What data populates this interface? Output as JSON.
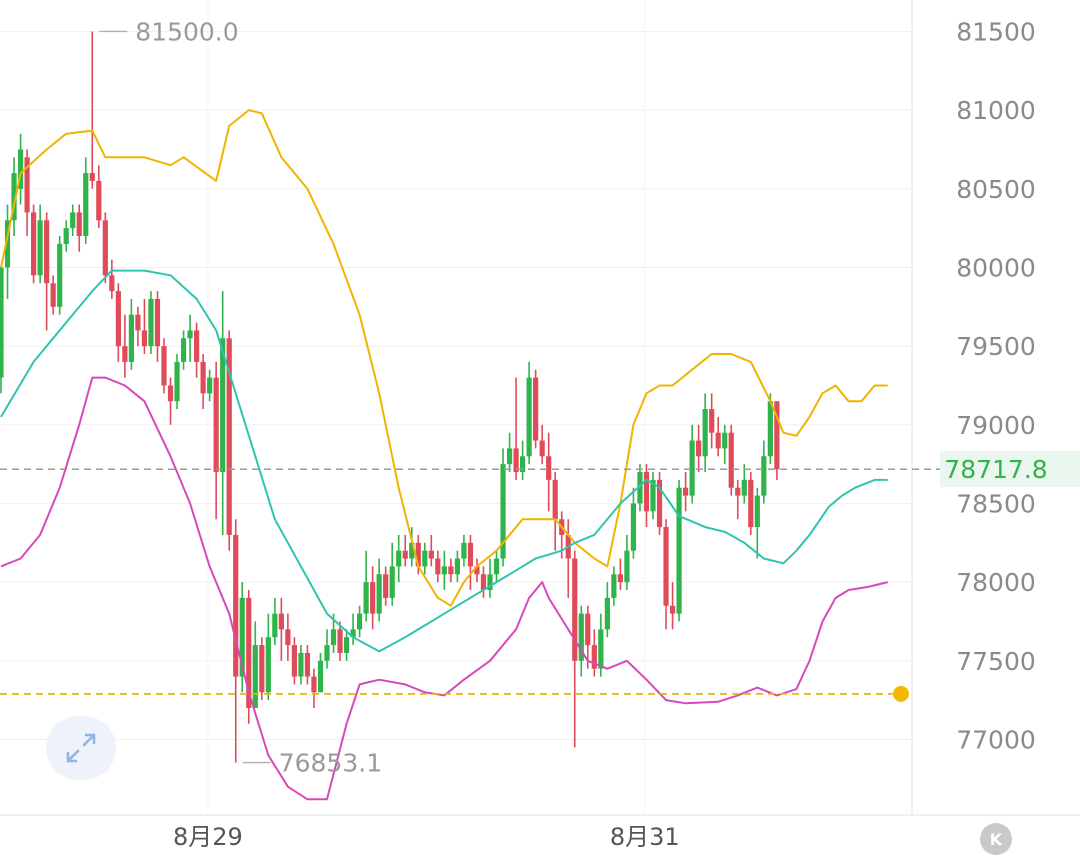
{
  "chart_data": {
    "type": "candlestick",
    "y_ticks": [
      81500,
      81000,
      80500,
      80000,
      79500,
      79000,
      78500,
      78000,
      77500,
      77000
    ],
    "y_tick_labels": [
      "81500",
      "81000",
      "80500",
      "80000",
      "79500",
      "79000",
      "78500",
      "78000",
      "77500",
      "77000"
    ],
    "ylim": [
      76520,
      81700
    ],
    "x_labels": [
      {
        "label": "8月29",
        "index": 21
      },
      {
        "label": "8月31",
        "index": 88
      }
    ],
    "last_price": 78717.8,
    "last_price_label": "78717.8",
    "alert_price": 77290,
    "max_label": "81500.0",
    "min_label": "76853.1",
    "grid": true,
    "colors": {
      "up": "#2fb34b",
      "down": "#e04b5a",
      "bb_upper": "#f0b400",
      "bb_middle": "#2ec4b0",
      "bb_lower": "#d948b8",
      "alert_line": "#f0b400",
      "last_price_line": "#9a9a9a"
    },
    "candles": [
      [
        79300,
        80000,
        80000,
        79200
      ],
      [
        80000,
        80300,
        80400,
        79800
      ],
      [
        80300,
        80600,
        80700,
        80200
      ],
      [
        80500,
        80750,
        80850,
        80400
      ],
      [
        80700,
        80350,
        80750,
        80200
      ],
      [
        80350,
        79950,
        80400,
        79900
      ],
      [
        79950,
        80300,
        80400,
        79900
      ],
      [
        80300,
        79900,
        80350,
        79600
      ],
      [
        79900,
        79750,
        79950,
        79700
      ],
      [
        79750,
        80150,
        80200,
        79700
      ],
      [
        80150,
        80250,
        80300,
        80100
      ],
      [
        80250,
        80350,
        80400,
        80200
      ],
      [
        80350,
        80200,
        80400,
        80100
      ],
      [
        80200,
        80600,
        80700,
        80150
      ],
      [
        80600,
        80550,
        81500,
        80500
      ],
      [
        80550,
        80300,
        80650,
        80250
      ],
      [
        80300,
        79950,
        80350,
        79900
      ],
      [
        79950,
        79850,
        80050,
        79800
      ],
      [
        79850,
        79500,
        79900,
        79400
      ],
      [
        79500,
        79400,
        79700,
        79300
      ],
      [
        79400,
        79700,
        79800,
        79350
      ],
      [
        79700,
        79600,
        79750,
        79500
      ],
      [
        79600,
        79500,
        79800,
        79450
      ],
      [
        79500,
        79800,
        79850,
        79450
      ],
      [
        79800,
        79500,
        79850,
        79400
      ],
      [
        79500,
        79250,
        79550,
        79200
      ],
      [
        79250,
        79150,
        79300,
        79000
      ],
      [
        79150,
        79400,
        79450,
        79100
      ],
      [
        79400,
        79550,
        79600,
        79350
      ],
      [
        79550,
        79600,
        79700,
        79400
      ],
      [
        79600,
        79400,
        79650,
        79300
      ],
      [
        79400,
        79200,
        79450,
        79100
      ],
      [
        79200,
        79300,
        79350,
        79150
      ],
      [
        79300,
        78700,
        79400,
        78400
      ],
      [
        78700,
        79550,
        79850,
        78300
      ],
      [
        79550,
        78300,
        79600,
        78200
      ],
      [
        78300,
        77400,
        78400,
        76853.1
      ],
      [
        77400,
        77900,
        78000,
        77300
      ],
      [
        77900,
        77200,
        77950,
        77100
      ],
      [
        77200,
        77600,
        77750,
        77250
      ],
      [
        77600,
        77300,
        77650,
        77250
      ],
      [
        77300,
        77650,
        77800,
        77250
      ],
      [
        77650,
        77800,
        77900,
        77600
      ],
      [
        77800,
        77700,
        77900,
        77500
      ],
      [
        77700,
        77600,
        77800,
        77500
      ],
      [
        77600,
        77400,
        77650,
        77350
      ],
      [
        77400,
        77550,
        77600,
        77350
      ],
      [
        77550,
        77400,
        77600,
        77350
      ],
      [
        77400,
        77300,
        77450,
        77200
      ],
      [
        77300,
        77500,
        77550,
        77300
      ],
      [
        77500,
        77600,
        77700,
        77450
      ],
      [
        77600,
        77700,
        77800,
        77550
      ],
      [
        77700,
        77550,
        77750,
        77500
      ],
      [
        77550,
        77650,
        77700,
        77500
      ],
      [
        77650,
        77700,
        77800,
        77600
      ],
      [
        77700,
        77800,
        77850,
        77650
      ],
      [
        77800,
        78000,
        78200,
        77750
      ],
      [
        78000,
        77800,
        78100,
        77700
      ],
      [
        77800,
        78050,
        78150,
        77750
      ],
      [
        78050,
        77900,
        78100,
        77850
      ],
      [
        77900,
        78100,
        78250,
        77850
      ],
      [
        78100,
        78200,
        78300,
        78000
      ],
      [
        78200,
        78150,
        78300,
        78100
      ],
      [
        78150,
        78250,
        78350,
        78100
      ],
      [
        78250,
        78100,
        78300,
        78050
      ],
      [
        78100,
        78200,
        78250,
        78050
      ],
      [
        78200,
        78150,
        78300,
        78100
      ],
      [
        78150,
        78050,
        78200,
        78000
      ],
      [
        78050,
        78100,
        78200,
        77950
      ],
      [
        78100,
        78050,
        78150,
        78000
      ],
      [
        78050,
        78150,
        78200,
        78000
      ],
      [
        78150,
        78250,
        78300,
        78100
      ],
      [
        78250,
        78100,
        78300,
        77950
      ],
      [
        78100,
        78050,
        78150,
        78000
      ],
      [
        78050,
        77950,
        78100,
        77900
      ],
      [
        77950,
        78050,
        78150,
        77900
      ],
      [
        78050,
        78150,
        78200,
        78000
      ],
      [
        78150,
        78750,
        78850,
        78100
      ],
      [
        78750,
        78850,
        78950,
        78700
      ],
      [
        78850,
        78700,
        79300,
        78650
      ],
      [
        78700,
        78800,
        78900,
        78650
      ],
      [
        78800,
        79300,
        79400,
        78750
      ],
      [
        79300,
        78900,
        79350,
        78850
      ],
      [
        78900,
        78800,
        79000,
        78750
      ],
      [
        78800,
        78650,
        78950,
        78450
      ],
      [
        78650,
        78400,
        78700,
        78200
      ],
      [
        78400,
        78300,
        78450,
        78150
      ],
      [
        78300,
        78150,
        78400,
        77900
      ],
      [
        78150,
        77500,
        78200,
        76950
      ],
      [
        77500,
        77800,
        77850,
        77400
      ],
      [
        77800,
        77600,
        77850,
        77450
      ],
      [
        77600,
        77450,
        77700,
        77400
      ],
      [
        77450,
        77700,
        77800,
        77400
      ],
      [
        77700,
        77900,
        78000,
        77650
      ],
      [
        77900,
        78050,
        78100,
        77850
      ],
      [
        78050,
        78000,
        78150,
        77950
      ],
      [
        78000,
        78200,
        78300,
        77950
      ],
      [
        78200,
        78500,
        78600,
        78150
      ],
      [
        78500,
        78700,
        78750,
        78450
      ],
      [
        78700,
        78450,
        78750,
        78350
      ],
      [
        78450,
        78650,
        78700,
        78400
      ],
      [
        78650,
        78350,
        78700,
        78300
      ],
      [
        78350,
        77850,
        78400,
        77700
      ],
      [
        77850,
        77800,
        78000,
        77700
      ],
      [
        77800,
        78600,
        78650,
        77750
      ],
      [
        78600,
        78550,
        78700,
        78450
      ],
      [
        78550,
        78900,
        79000,
        78500
      ],
      [
        78900,
        78800,
        79000,
        78700
      ],
      [
        78800,
        79100,
        79200,
        78700
      ],
      [
        79100,
        78950,
        79200,
        78850
      ],
      [
        78950,
        78850,
        79050,
        78800
      ],
      [
        78850,
        78950,
        79000,
        78750
      ],
      [
        78950,
        78600,
        79000,
        78550
      ],
      [
        78600,
        78550,
        78650,
        78400
      ],
      [
        78550,
        78650,
        78750,
        78500
      ],
      [
        78650,
        78350,
        78700,
        78300
      ],
      [
        78350,
        78550,
        78600,
        78150
      ],
      [
        78550,
        78800,
        78900,
        78500
      ],
      [
        78800,
        79150,
        79200,
        78750
      ],
      [
        79150,
        78717.8,
        79150,
        78650
      ]
    ],
    "bb_upper": [
      [
        0,
        80000
      ],
      [
        3,
        80600
      ],
      [
        7,
        80750
      ],
      [
        10,
        80850
      ],
      [
        14,
        80870
      ],
      [
        16,
        80700
      ],
      [
        22,
        80700
      ],
      [
        26,
        80650
      ],
      [
        28,
        80700
      ],
      [
        33,
        80550
      ],
      [
        35,
        80900
      ],
      [
        38,
        81000
      ],
      [
        40,
        80980
      ],
      [
        43,
        80700
      ],
      [
        47,
        80500
      ],
      [
        51,
        80150
      ],
      [
        55,
        79700
      ],
      [
        58,
        79200
      ],
      [
        61,
        78600
      ],
      [
        64,
        78100
      ],
      [
        67,
        77900
      ],
      [
        69,
        77850
      ],
      [
        71,
        78000
      ],
      [
        73,
        78100
      ],
      [
        76,
        78200
      ],
      [
        78,
        78300
      ],
      [
        80,
        78400
      ],
      [
        85,
        78400
      ],
      [
        88,
        78250
      ],
      [
        91,
        78150
      ],
      [
        93,
        78100
      ],
      [
        95,
        78500
      ],
      [
        97,
        79000
      ],
      [
        99,
        79200
      ],
      [
        101,
        79250
      ],
      [
        103,
        79250
      ],
      [
        106,
        79350
      ],
      [
        109,
        79450
      ],
      [
        112,
        79450
      ],
      [
        115,
        79400
      ],
      [
        118,
        79150
      ],
      [
        120,
        78950
      ],
      [
        122,
        78930
      ],
      [
        124,
        79050
      ],
      [
        126,
        79200
      ],
      [
        128,
        79250
      ],
      [
        130,
        79150
      ],
      [
        132,
        79150
      ],
      [
        134,
        79250
      ],
      [
        136,
        79250
      ]
    ],
    "bb_middle": [
      [
        0,
        79050
      ],
      [
        5,
        79400
      ],
      [
        10,
        79650
      ],
      [
        14,
        79850
      ],
      [
        17,
        79980
      ],
      [
        22,
        79980
      ],
      [
        26,
        79950
      ],
      [
        30,
        79800
      ],
      [
        33,
        79600
      ],
      [
        36,
        79200
      ],
      [
        39,
        78800
      ],
      [
        42,
        78400
      ],
      [
        46,
        78100
      ],
      [
        50,
        77800
      ],
      [
        54,
        77650
      ],
      [
        58,
        77560
      ],
      [
        62,
        77650
      ],
      [
        66,
        77750
      ],
      [
        70,
        77850
      ],
      [
        74,
        77950
      ],
      [
        78,
        78050
      ],
      [
        82,
        78150
      ],
      [
        86,
        78200
      ],
      [
        88,
        78250
      ],
      [
        91,
        78300
      ],
      [
        95,
        78500
      ],
      [
        99,
        78650
      ],
      [
        101,
        78600
      ],
      [
        104,
        78420
      ],
      [
        108,
        78350
      ],
      [
        111,
        78320
      ],
      [
        114,
        78250
      ],
      [
        117,
        78150
      ],
      [
        120,
        78120
      ],
      [
        122,
        78200
      ],
      [
        124,
        78300
      ],
      [
        127,
        78480
      ],
      [
        129,
        78550
      ],
      [
        131,
        78600
      ],
      [
        134,
        78650
      ],
      [
        136,
        78650
      ]
    ],
    "bb_lower": [
      [
        0,
        78100
      ],
      [
        3,
        78150
      ],
      [
        6,
        78300
      ],
      [
        9,
        78600
      ],
      [
        12,
        79000
      ],
      [
        14,
        79300
      ],
      [
        16,
        79300
      ],
      [
        19,
        79250
      ],
      [
        22,
        79150
      ],
      [
        26,
        78800
      ],
      [
        29,
        78500
      ],
      [
        32,
        78100
      ],
      [
        35,
        77800
      ],
      [
        38,
        77300
      ],
      [
        41,
        76900
      ],
      [
        44,
        76700
      ],
      [
        47,
        76620
      ],
      [
        50,
        76620
      ],
      [
        53,
        77100
      ],
      [
        55,
        77350
      ],
      [
        58,
        77380
      ],
      [
        62,
        77350
      ],
      [
        65,
        77300
      ],
      [
        68,
        77280
      ],
      [
        71,
        77380
      ],
      [
        75,
        77500
      ],
      [
        79,
        77700
      ],
      [
        81,
        77900
      ],
      [
        83,
        78000
      ],
      [
        84,
        77900
      ],
      [
        87,
        77700
      ],
      [
        90,
        77500
      ],
      [
        93,
        77450
      ],
      [
        96,
        77500
      ],
      [
        99,
        77380
      ],
      [
        102,
        77250
      ],
      [
        105,
        77230
      ],
      [
        110,
        77240
      ],
      [
        113,
        77280
      ],
      [
        116,
        77330
      ],
      [
        119,
        77280
      ],
      [
        122,
        77320
      ],
      [
        124,
        77500
      ],
      [
        126,
        77750
      ],
      [
        128,
        77900
      ],
      [
        130,
        77950
      ],
      [
        133,
        77970
      ],
      [
        136,
        78000
      ]
    ]
  },
  "controls": {
    "expand_icon": "expand-diagonal-icon",
    "k_label": "K"
  }
}
